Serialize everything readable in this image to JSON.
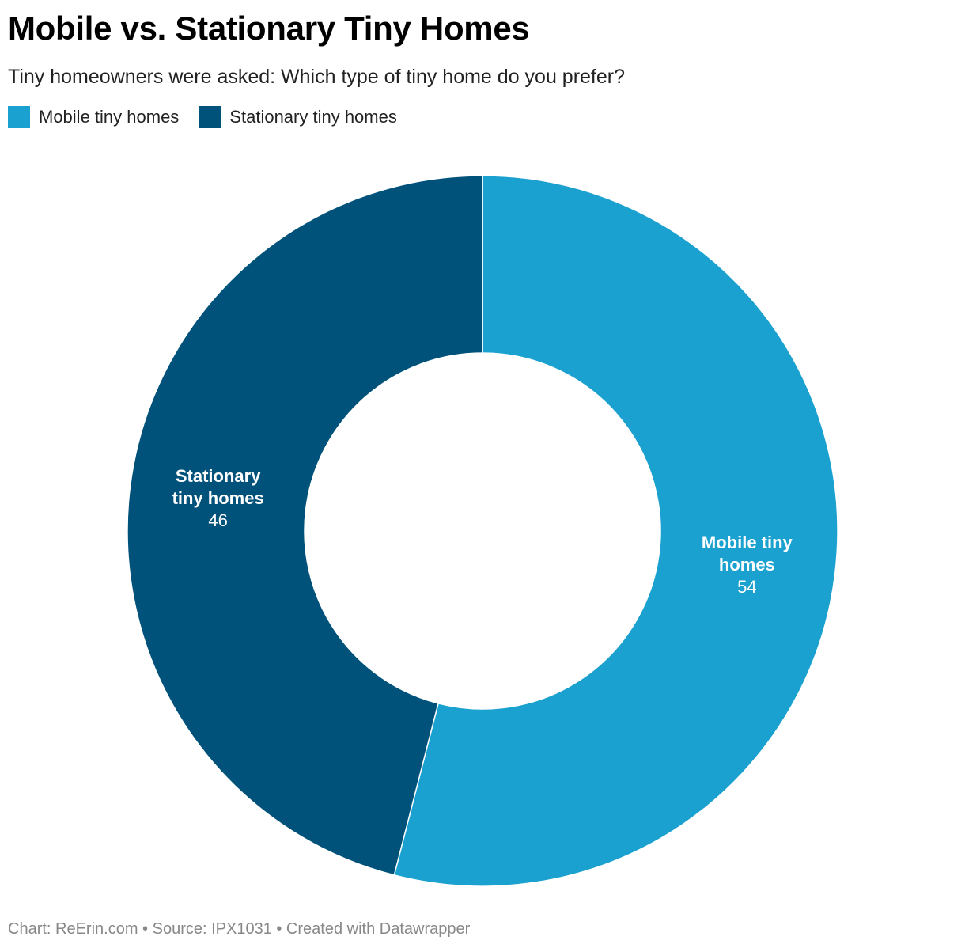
{
  "header": {
    "title": "Mobile vs. Stationary Tiny Homes",
    "subtitle": "Tiny homeowners were asked: Which type of tiny home do you prefer?"
  },
  "footer": {
    "text": "Chart: ReErin.com • Source: IPX1031 • Created with Datawrapper"
  },
  "chart_data": {
    "type": "pie",
    "variant": "donut",
    "title": "Mobile vs. Stationary Tiny Homes",
    "subtitle": "Tiny homeowners were asked: Which type of tiny home do you prefer?",
    "legend_position": "top-left",
    "slices": [
      {
        "name": "Mobile tiny homes",
        "label_lines": [
          "Mobile tiny",
          "homes"
        ],
        "value": 54,
        "value_label": "54",
        "color": "#1aa1cf"
      },
      {
        "name": "Stationary tiny homes",
        "label_lines": [
          "Stationary",
          "tiny homes"
        ],
        "value": 46,
        "value_label": "46",
        "color": "#00527a"
      }
    ],
    "separator_color": "#ffffff",
    "label_color": "#ffffff"
  }
}
